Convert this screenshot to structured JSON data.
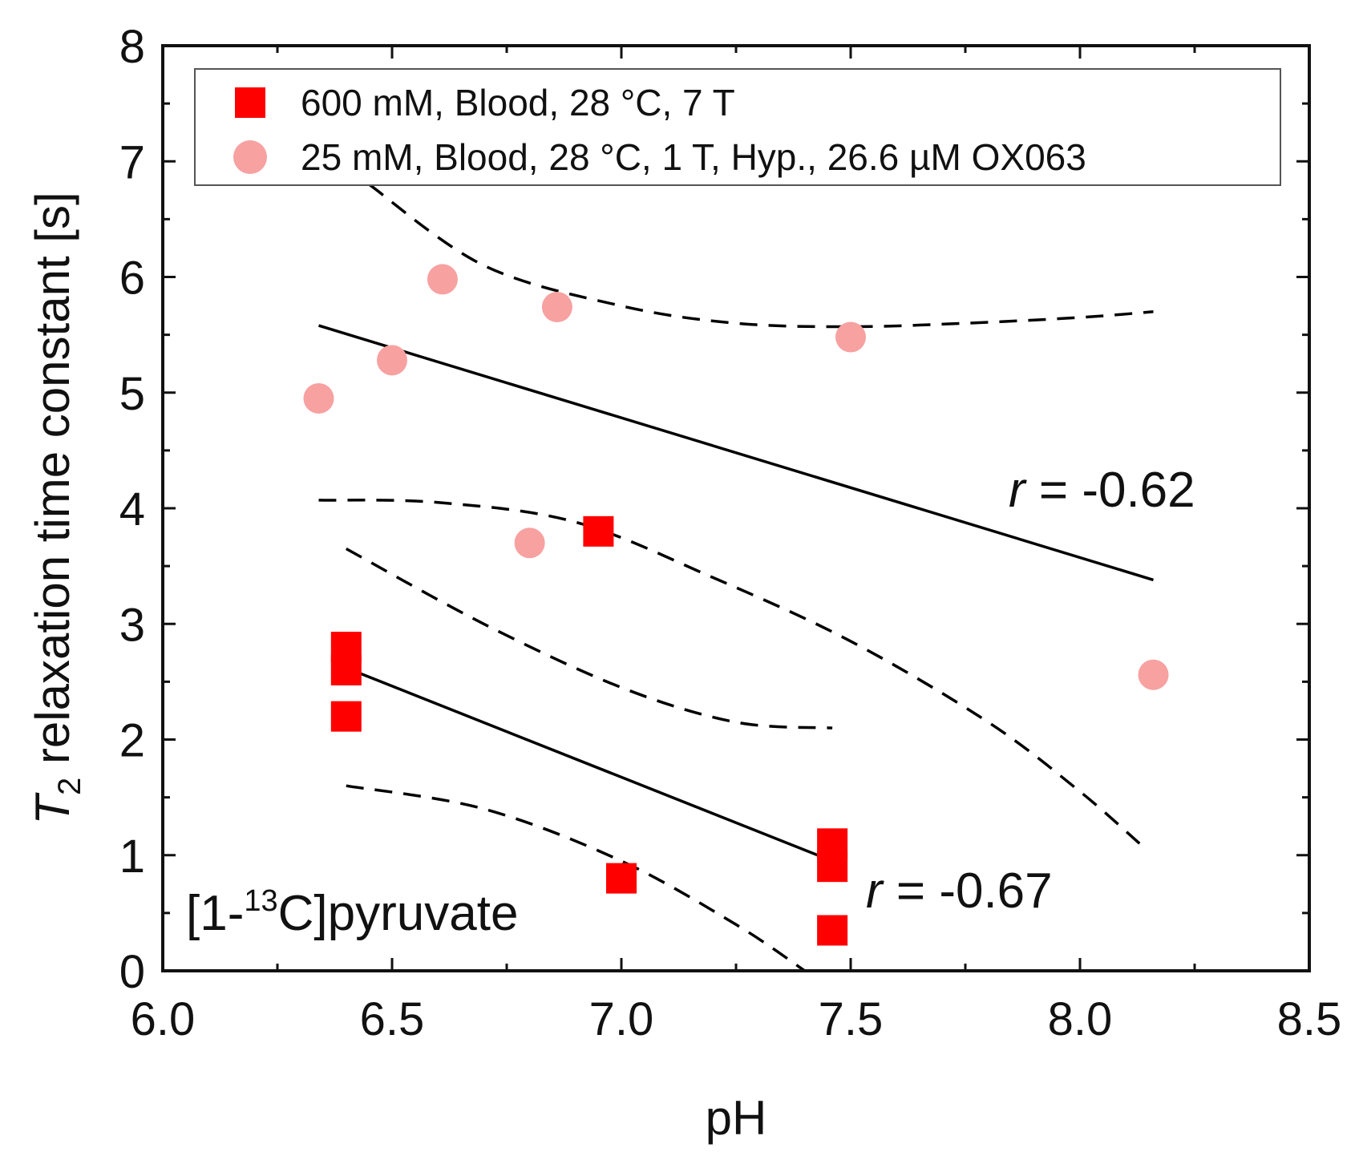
{
  "chart_data": {
    "type": "scatter",
    "xlabel": "pH",
    "ylabel_italic": "T",
    "ylabel_sub": "2",
    "ylabel_rest": " relaxation time constant [s]",
    "xlim": [
      6.0,
      8.5
    ],
    "ylim": [
      0,
      8
    ],
    "xticks": [
      6.0,
      6.5,
      7.0,
      7.5,
      8.0,
      8.5
    ],
    "xtick_labels": [
      "6.0",
      "6.5",
      "7.0",
      "7.5",
      "8.0",
      "8.5"
    ],
    "yticks": [
      0,
      1,
      2,
      3,
      4,
      5,
      6,
      7,
      8
    ],
    "ytick_labels": [
      "0",
      "1",
      "2",
      "3",
      "4",
      "5",
      "6",
      "7",
      "8"
    ],
    "grid": false,
    "legend_position": "top",
    "series": [
      {
        "name": "600 mM, Blood, 28 °C, 7 T",
        "marker": "square",
        "color": "#ff0000",
        "points": [
          [
            6.4,
            2.8
          ],
          [
            6.4,
            2.6
          ],
          [
            6.4,
            2.2
          ],
          [
            6.95,
            3.8
          ],
          [
            7.0,
            0.8
          ],
          [
            7.46,
            1.1
          ],
          [
            7.46,
            0.9
          ],
          [
            7.46,
            0.35
          ]
        ]
      },
      {
        "name": "25 mM, Blood, 28 °C, 1 T, Hyp., 26.6 µM OX063",
        "marker": "circle",
        "color": "#f7a1a1",
        "points": [
          [
            6.34,
            4.95
          ],
          [
            6.5,
            5.28
          ],
          [
            6.61,
            5.98
          ],
          [
            6.86,
            5.74
          ],
          [
            7.5,
            5.48
          ],
          [
            6.8,
            3.7
          ],
          [
            8.16,
            2.56
          ]
        ]
      }
    ],
    "fits": [
      {
        "name": "fit-25mM",
        "line": [
          [
            6.34,
            5.58
          ],
          [
            8.16,
            3.38
          ]
        ],
        "ci_upper": [
          [
            6.45,
            6.8
          ],
          [
            6.7,
            6.1
          ],
          [
            7.0,
            5.75
          ],
          [
            7.25,
            5.6
          ],
          [
            7.5,
            5.57
          ],
          [
            7.75,
            5.6
          ],
          [
            8.0,
            5.65
          ],
          [
            8.16,
            5.7
          ]
        ],
        "ci_lower": [
          [
            6.34,
            4.07
          ],
          [
            6.6,
            4.05
          ],
          [
            6.9,
            3.88
          ],
          [
            7.2,
            3.4
          ],
          [
            7.5,
            2.85
          ],
          [
            7.8,
            2.15
          ],
          [
            8.0,
            1.55
          ],
          [
            8.13,
            1.1
          ]
        ]
      },
      {
        "name": "fit-600mM",
        "line": [
          [
            6.4,
            2.62
          ],
          [
            7.46,
            0.95
          ]
        ],
        "ci_upper": [
          [
            6.4,
            3.65
          ],
          [
            6.7,
            3.0
          ],
          [
            7.0,
            2.45
          ],
          [
            7.25,
            2.15
          ],
          [
            7.46,
            2.1
          ]
        ],
        "ci_lower": [
          [
            6.4,
            1.6
          ],
          [
            6.7,
            1.4
          ],
          [
            7.0,
            0.95
          ],
          [
            7.25,
            0.4
          ],
          [
            7.4,
            0.0
          ]
        ]
      }
    ],
    "annotations": {
      "r_upper": {
        "italic": "r",
        "text": " = -0.62"
      },
      "r_lower": {
        "italic": "r",
        "text": " = -0.67"
      },
      "compound_prefix": "[1-",
      "compound_sup": "13",
      "compound_suffix": "C]pyruvate"
    }
  }
}
